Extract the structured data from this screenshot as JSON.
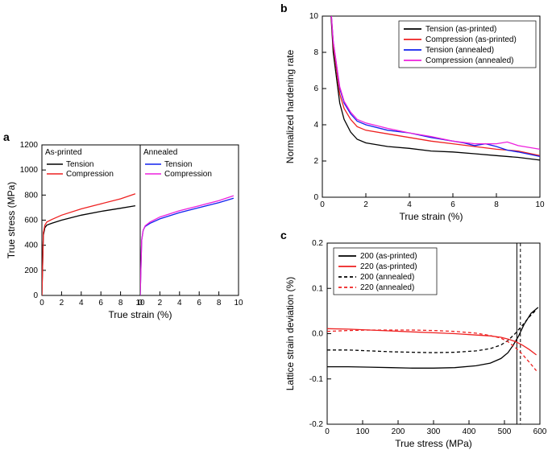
{
  "colors": {
    "black": "#000000",
    "red": "#ee2020",
    "blue": "#1020ee",
    "magenta": "#ee20dd",
    "bg": "#ffffff",
    "axis": "#000000"
  },
  "panel_a": {
    "label": "a",
    "xlabel": "True strain (%)",
    "ylabel": "True stress (MPa)",
    "xlim": [
      0,
      10
    ],
    "ylim": [
      0,
      1200
    ],
    "xtick_step": 2,
    "ytick_step": 200,
    "label_fontsize": 12,
    "tick_fontsize": 10,
    "line_width": 1.3,
    "left": {
      "sublabel": "As-printed",
      "legend": [
        "Tension",
        "Compression"
      ],
      "legend_colors": [
        "#000000",
        "#ee2020"
      ],
      "series": [
        {
          "name": "Tension",
          "color": "#000000",
          "pts": [
            [
              0,
              0
            ],
            [
              0.15,
              480
            ],
            [
              0.3,
              540
            ],
            [
              0.5,
              560
            ],
            [
              1,
              575
            ],
            [
              2,
              600
            ],
            [
              4,
              640
            ],
            [
              6,
              670
            ],
            [
              8,
              695
            ],
            [
              9.5,
              715
            ]
          ]
        },
        {
          "name": "Compression",
          "color": "#ee2020",
          "pts": [
            [
              0,
              0
            ],
            [
              0.15,
              500
            ],
            [
              0.3,
              560
            ],
            [
              0.5,
              585
            ],
            [
              1,
              605
            ],
            [
              2,
              640
            ],
            [
              4,
              690
            ],
            [
              6,
              730
            ],
            [
              8,
              770
            ],
            [
              9.5,
              810
            ]
          ]
        }
      ]
    },
    "right": {
      "sublabel": "Annealed",
      "legend": [
        "Tension",
        "Compression"
      ],
      "legend_colors": [
        "#1020ee",
        "#ee20dd"
      ],
      "series": [
        {
          "name": "Tension",
          "color": "#1020ee",
          "pts": [
            [
              0,
              0
            ],
            [
              0.15,
              440
            ],
            [
              0.3,
              520
            ],
            [
              0.5,
              550
            ],
            [
              1,
              575
            ],
            [
              2,
              610
            ],
            [
              4,
              660
            ],
            [
              6,
              700
            ],
            [
              8,
              740
            ],
            [
              9.5,
              775
            ]
          ]
        },
        {
          "name": "Compression",
          "color": "#ee20dd",
          "pts": [
            [
              0,
              0
            ],
            [
              0.15,
              440
            ],
            [
              0.3,
              520
            ],
            [
              0.5,
              555
            ],
            [
              1,
              585
            ],
            [
              2,
              625
            ],
            [
              4,
              675
            ],
            [
              6,
              715
            ],
            [
              8,
              755
            ],
            [
              9.5,
              795
            ]
          ]
        }
      ]
    }
  },
  "panel_b": {
    "label": "b",
    "xlabel": "True strain (%)",
    "ylabel": "Normalized hardening rate",
    "xlim": [
      0,
      10
    ],
    "ylim": [
      0,
      10
    ],
    "xtick_step": 2,
    "ytick_step": 2,
    "label_fontsize": 12,
    "tick_fontsize": 10,
    "line_width": 1.3,
    "legend": [
      {
        "label": "Tension (as-printed)",
        "color": "#000000"
      },
      {
        "label": "Compression (as-printed)",
        "color": "#ee2020"
      },
      {
        "label": "Tension (annealed)",
        "color": "#1020ee"
      },
      {
        "label": "Compression (annealed)",
        "color": "#ee20dd"
      }
    ],
    "series": [
      {
        "name": "Tension (as-printed)",
        "color": "#000000",
        "pts": [
          [
            0.3,
            12
          ],
          [
            0.5,
            8
          ],
          [
            0.8,
            5.2
          ],
          [
            1,
            4.3
          ],
          [
            1.3,
            3.6
          ],
          [
            1.6,
            3.2
          ],
          [
            2,
            3.0
          ],
          [
            3,
            2.8
          ],
          [
            4,
            2.7
          ],
          [
            5,
            2.55
          ],
          [
            6,
            2.5
          ],
          [
            7,
            2.4
          ],
          [
            8,
            2.3
          ],
          [
            9,
            2.2
          ],
          [
            10,
            2.05
          ]
        ]
      },
      {
        "name": "Compression (as-printed)",
        "color": "#ee2020",
        "pts": [
          [
            0.3,
            12
          ],
          [
            0.5,
            8.4
          ],
          [
            0.8,
            5.7
          ],
          [
            1,
            4.9
          ],
          [
            1.3,
            4.3
          ],
          [
            1.6,
            3.9
          ],
          [
            2,
            3.7
          ],
          [
            3,
            3.5
          ],
          [
            4,
            3.3
          ],
          [
            5,
            3.1
          ],
          [
            6,
            2.95
          ],
          [
            7,
            2.8
          ],
          [
            8,
            2.65
          ],
          [
            9,
            2.55
          ],
          [
            10,
            2.3
          ]
        ]
      },
      {
        "name": "Tension (annealed)",
        "color": "#1020ee",
        "pts": [
          [
            0.3,
            12
          ],
          [
            0.5,
            8.6
          ],
          [
            0.8,
            6.0
          ],
          [
            1,
            5.2
          ],
          [
            1.3,
            4.6
          ],
          [
            1.6,
            4.2
          ],
          [
            2,
            4.0
          ],
          [
            3,
            3.7
          ],
          [
            4,
            3.55
          ],
          [
            5,
            3.3
          ],
          [
            6,
            3.1
          ],
          [
            6.5,
            3.0
          ],
          [
            7,
            2.85
          ],
          [
            7.5,
            2.95
          ],
          [
            8,
            2.8
          ],
          [
            8.5,
            2.6
          ],
          [
            9,
            2.5
          ],
          [
            10,
            2.25
          ]
        ]
      },
      {
        "name": "Compression (annealed)",
        "color": "#ee20dd",
        "pts": [
          [
            0.3,
            12
          ],
          [
            0.5,
            8.6
          ],
          [
            0.8,
            6.1
          ],
          [
            1,
            5.3
          ],
          [
            1.3,
            4.7
          ],
          [
            1.6,
            4.3
          ],
          [
            2,
            4.1
          ],
          [
            3,
            3.8
          ],
          [
            4,
            3.55
          ],
          [
            5,
            3.35
          ],
          [
            6,
            3.1
          ],
          [
            7,
            2.95
          ],
          [
            8,
            2.95
          ],
          [
            8.5,
            3.05
          ],
          [
            9,
            2.85
          ],
          [
            10,
            2.65
          ]
        ]
      }
    ]
  },
  "panel_c": {
    "label": "c",
    "xlabel": "True stress (MPa)",
    "ylabel": "Lattice strain deviation (%)",
    "xlim": [
      0,
      600
    ],
    "ylim": [
      -0.2,
      0.2
    ],
    "xtick_step": 100,
    "ytick_step": 0.1,
    "label_fontsize": 12,
    "tick_fontsize": 10,
    "line_width": 1.3,
    "legend": [
      {
        "label": "200 (as-printed)",
        "color": "#000000",
        "dash": "none"
      },
      {
        "label": "220 (as-printed)",
        "color": "#ee2020",
        "dash": "none"
      },
      {
        "label": "200 (annealed)",
        "color": "#000000",
        "dash": "4,3"
      },
      {
        "label": "220 (annealed)",
        "color": "#ee2020",
        "dash": "4,3"
      }
    ],
    "vlines": [
      {
        "x": 535,
        "color": "#000000",
        "dash": "none"
      },
      {
        "x": 545,
        "color": "#000000",
        "dash": "4,3"
      }
    ],
    "series": [
      {
        "name": "200 (as-printed)",
        "color": "#000000",
        "dash": "none",
        "pts": [
          [
            0,
            -0.073
          ],
          [
            60,
            -0.073
          ],
          [
            120,
            -0.074
          ],
          [
            180,
            -0.075
          ],
          [
            240,
            -0.076
          ],
          [
            300,
            -0.076
          ],
          [
            360,
            -0.075
          ],
          [
            420,
            -0.071
          ],
          [
            460,
            -0.065
          ],
          [
            490,
            -0.055
          ],
          [
            510,
            -0.042
          ],
          [
            525,
            -0.025
          ],
          [
            540,
            -0.005
          ],
          [
            555,
            0.02
          ],
          [
            575,
            0.045
          ],
          [
            595,
            0.058
          ]
        ]
      },
      {
        "name": "220 (as-printed)",
        "color": "#ee2020",
        "dash": "none",
        "pts": [
          [
            0,
            0.011
          ],
          [
            60,
            0.01
          ],
          [
            120,
            0.008
          ],
          [
            180,
            0.006
          ],
          [
            240,
            0.004
          ],
          [
            300,
            0.002
          ],
          [
            360,
            0.0
          ],
          [
            420,
            -0.003
          ],
          [
            460,
            -0.005
          ],
          [
            490,
            -0.008
          ],
          [
            510,
            -0.012
          ],
          [
            530,
            -0.017
          ],
          [
            550,
            -0.025
          ],
          [
            570,
            -0.035
          ],
          [
            590,
            -0.047
          ]
        ]
      },
      {
        "name": "200 (annealed)",
        "color": "#000000",
        "dash": "4,3",
        "pts": [
          [
            0,
            -0.036
          ],
          [
            60,
            -0.036
          ],
          [
            120,
            -0.038
          ],
          [
            180,
            -0.04
          ],
          [
            240,
            -0.041
          ],
          [
            300,
            -0.042
          ],
          [
            360,
            -0.041
          ],
          [
            420,
            -0.038
          ],
          [
            460,
            -0.033
          ],
          [
            490,
            -0.025
          ],
          [
            510,
            -0.015
          ],
          [
            530,
            0.0
          ],
          [
            550,
            0.018
          ],
          [
            570,
            0.037
          ],
          [
            590,
            0.053
          ]
        ]
      },
      {
        "name": "220 (annealed)",
        "color": "#ee2020",
        "dash": "4,3",
        "pts": [
          [
            0,
            0.005
          ],
          [
            60,
            0.007
          ],
          [
            120,
            0.008
          ],
          [
            180,
            0.008
          ],
          [
            240,
            0.008
          ],
          [
            300,
            0.007
          ],
          [
            360,
            0.005
          ],
          [
            420,
            0.001
          ],
          [
            460,
            -0.004
          ],
          [
            490,
            -0.01
          ],
          [
            510,
            -0.018
          ],
          [
            530,
            -0.03
          ],
          [
            550,
            -0.045
          ],
          [
            570,
            -0.063
          ],
          [
            590,
            -0.082
          ]
        ]
      }
    ]
  }
}
